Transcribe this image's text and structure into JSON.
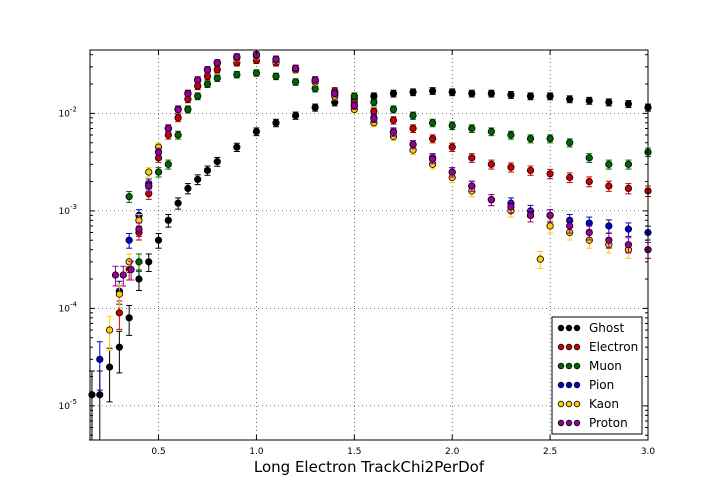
{
  "chart_data": {
    "type": "scatter",
    "title": "",
    "xlabel": "Long Electron TrackChi2PerDof",
    "ylabel": "",
    "xlim": [
      0.15,
      3.0
    ],
    "ylim_log10": [
      -5.35,
      -1.35
    ],
    "y_scale": "log",
    "grid": true,
    "legend_position": "lower-right",
    "x_ticks": [
      {
        "value": 0.5,
        "label": "0.5"
      },
      {
        "value": 1.0,
        "label": "1.0"
      },
      {
        "value": 1.5,
        "label": "1.5"
      },
      {
        "value": 2.0,
        "label": "2.0"
      },
      {
        "value": 2.5,
        "label": "2.5"
      },
      {
        "value": 3.0,
        "label": "3.0"
      }
    ],
    "y_ticks": [
      {
        "value": 1e-05,
        "mantissa": "10",
        "exponent": "-5"
      },
      {
        "value": 0.0001,
        "mantissa": "10",
        "exponent": "-4"
      },
      {
        "value": 0.001,
        "mantissa": "10",
        "exponent": "-3"
      },
      {
        "value": 0.01,
        "mantissa": "10",
        "exponent": "-2"
      }
    ],
    "series": [
      {
        "name": "Ghost",
        "color": "#000000",
        "x": [
          0.16,
          0.2,
          0.25,
          0.3,
          0.35,
          0.4,
          0.45,
          0.5,
          0.55,
          0.6,
          0.65,
          0.7,
          0.75,
          0.8,
          0.9,
          1.0,
          1.1,
          1.2,
          1.3,
          1.4,
          1.5,
          1.6,
          1.7,
          1.8,
          1.9,
          2.0,
          2.1,
          2.2,
          2.3,
          2.4,
          2.5,
          2.6,
          2.7,
          2.8,
          2.9,
          3.0
        ],
        "y": [
          1.3e-05,
          1.3e-05,
          2.5e-05,
          4e-05,
          8e-05,
          0.0002,
          0.0003,
          0.0005,
          0.0008,
          0.0012,
          0.0017,
          0.0021,
          0.0026,
          0.0032,
          0.0045,
          0.0065,
          0.008,
          0.0095,
          0.0115,
          0.013,
          0.014,
          0.015,
          0.016,
          0.0165,
          0.017,
          0.0165,
          0.016,
          0.016,
          0.0155,
          0.015,
          0.015,
          0.014,
          0.0135,
          0.013,
          0.0125,
          0.0115
        ]
      },
      {
        "name": "Electron",
        "color": "#cc0000",
        "x": [
          0.3,
          0.35,
          0.4,
          0.45,
          0.5,
          0.55,
          0.6,
          0.65,
          0.7,
          0.75,
          0.8,
          0.9,
          1.0,
          1.1,
          1.2,
          1.3,
          1.4,
          1.5,
          1.6,
          1.7,
          1.8,
          1.9,
          2.0,
          2.1,
          2.2,
          2.3,
          2.4,
          2.5,
          2.6,
          2.7,
          2.8,
          2.9,
          3.0
        ],
        "y": [
          9e-05,
          0.00025,
          0.0006,
          0.0015,
          0.0035,
          0.006,
          0.009,
          0.014,
          0.019,
          0.024,
          0.028,
          0.033,
          0.035,
          0.033,
          0.028,
          0.022,
          0.017,
          0.013,
          0.0105,
          0.0085,
          0.007,
          0.0055,
          0.0045,
          0.0035,
          0.003,
          0.0028,
          0.0026,
          0.0024,
          0.0022,
          0.002,
          0.0018,
          0.0017,
          0.0016
        ]
      },
      {
        "name": "Muon",
        "color": "#006600",
        "x": [
          0.35,
          0.4,
          0.45,
          0.5,
          0.55,
          0.6,
          0.65,
          0.7,
          0.75,
          0.8,
          0.9,
          1.0,
          1.1,
          1.2,
          1.3,
          1.4,
          1.5,
          1.6,
          1.7,
          1.8,
          1.9,
          2.0,
          2.1,
          2.2,
          2.3,
          2.4,
          2.5,
          2.6,
          2.7,
          2.8,
          2.9,
          3.0
        ],
        "y": [
          0.0014,
          0.0003,
          0.0018,
          0.0025,
          0.003,
          0.006,
          0.011,
          0.015,
          0.02,
          0.023,
          0.025,
          0.026,
          0.024,
          0.021,
          0.018,
          0.016,
          0.015,
          0.013,
          0.011,
          0.0095,
          0.008,
          0.0075,
          0.007,
          0.0065,
          0.006,
          0.0055,
          0.0055,
          0.005,
          0.0035,
          0.003,
          0.003,
          0.004
        ]
      },
      {
        "name": "Pion",
        "color": "#0000cc",
        "x": [
          0.2,
          0.3,
          0.35,
          0.4,
          0.45,
          0.5,
          0.55,
          0.6,
          0.65,
          0.7,
          0.75,
          0.8,
          0.9,
          1.0,
          1.1,
          1.2,
          1.3,
          1.4,
          1.5,
          1.6,
          1.7,
          1.8,
          1.9,
          2.0,
          2.1,
          2.2,
          2.3,
          2.4,
          2.5,
          2.6,
          2.7,
          2.8,
          2.9,
          3.0
        ],
        "y": [
          3e-05,
          0.00015,
          0.0005,
          0.0009,
          0.0019,
          0.004,
          0.007,
          0.011,
          0.016,
          0.022,
          0.028,
          0.033,
          0.038,
          0.04,
          0.036,
          0.029,
          0.022,
          0.016,
          0.012,
          0.009,
          0.0065,
          0.0048,
          0.0035,
          0.0025,
          0.0018,
          0.0013,
          0.0012,
          0.001,
          0.0009,
          0.0008,
          0.00075,
          0.0007,
          0.00065,
          0.0006
        ]
      },
      {
        "name": "Kaon",
        "color": "#ffcc00",
        "x": [
          0.25,
          0.3,
          0.35,
          0.4,
          0.45,
          0.5,
          0.55,
          0.6,
          0.65,
          0.7,
          0.75,
          0.8,
          0.9,
          1.0,
          1.1,
          1.2,
          1.3,
          1.4,
          1.5,
          1.6,
          1.7,
          1.8,
          1.9,
          2.0,
          2.1,
          2.2,
          2.3,
          2.4,
          2.45,
          2.5,
          2.6,
          2.7,
          2.8,
          2.9,
          3.0
        ],
        "y": [
          6e-05,
          0.00014,
          0.0003,
          0.0008,
          0.0025,
          0.0045,
          0.007,
          0.011,
          0.016,
          0.022,
          0.028,
          0.033,
          0.037,
          0.039,
          0.035,
          0.028,
          0.021,
          0.015,
          0.011,
          0.008,
          0.0058,
          0.0042,
          0.003,
          0.0022,
          0.0016,
          0.0013,
          0.001,
          0.0009,
          0.00032,
          0.0007,
          0.0006,
          0.0005,
          0.00045,
          0.0004,
          0.0004
        ]
      },
      {
        "name": "Proton",
        "color": "#990099",
        "x": [
          0.28,
          0.32,
          0.36,
          0.4,
          0.45,
          0.5,
          0.55,
          0.6,
          0.65,
          0.7,
          0.75,
          0.8,
          0.9,
          1.0,
          1.1,
          1.2,
          1.3,
          1.4,
          1.5,
          1.6,
          1.7,
          1.8,
          1.9,
          2.0,
          2.1,
          2.2,
          2.3,
          2.4,
          2.5,
          2.6,
          2.7,
          2.8,
          2.9,
          3.0
        ],
        "y": [
          0.00022,
          0.00022,
          0.00025,
          0.00065,
          0.0018,
          0.004,
          0.007,
          0.011,
          0.016,
          0.022,
          0.028,
          0.033,
          0.038,
          0.04,
          0.036,
          0.029,
          0.022,
          0.016,
          0.012,
          0.0088,
          0.0064,
          0.0048,
          0.0034,
          0.0025,
          0.0018,
          0.0013,
          0.0011,
          0.0009,
          0.0009,
          0.0007,
          0.0006,
          0.0005,
          0.00045,
          0.0004
        ]
      }
    ]
  }
}
